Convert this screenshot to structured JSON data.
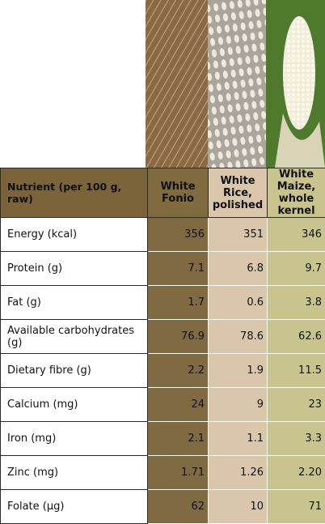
{
  "table": {
    "header": [
      "Nutrient (per 100 g, raw)",
      "White Fonio",
      "White Rice, polished",
      "White Maize, whole kernel"
    ],
    "rows": [
      [
        "Energy (kcal)",
        "356",
        "351",
        "346"
      ],
      [
        "Protein (g)",
        "7.1",
        "6.8",
        "9.7"
      ],
      [
        "Fat (g)",
        "1.7",
        "0.6",
        "3.8"
      ],
      [
        "Available carbohydrates (g)",
        "76.9",
        "78.6",
        "62.6"
      ],
      [
        "Dietary fibre (g)",
        "2.2",
        "1.9",
        "11.5"
      ],
      [
        "Calcium (mg)",
        "24",
        "9",
        "23"
      ],
      [
        "Iron (mg)",
        "2.1",
        "1.1",
        "3.3"
      ],
      [
        "Zinc (mg)",
        "1.71",
        "1.26",
        "2.20"
      ],
      [
        "Folate (µg)",
        "62",
        "10",
        "71"
      ]
    ]
  }
}
